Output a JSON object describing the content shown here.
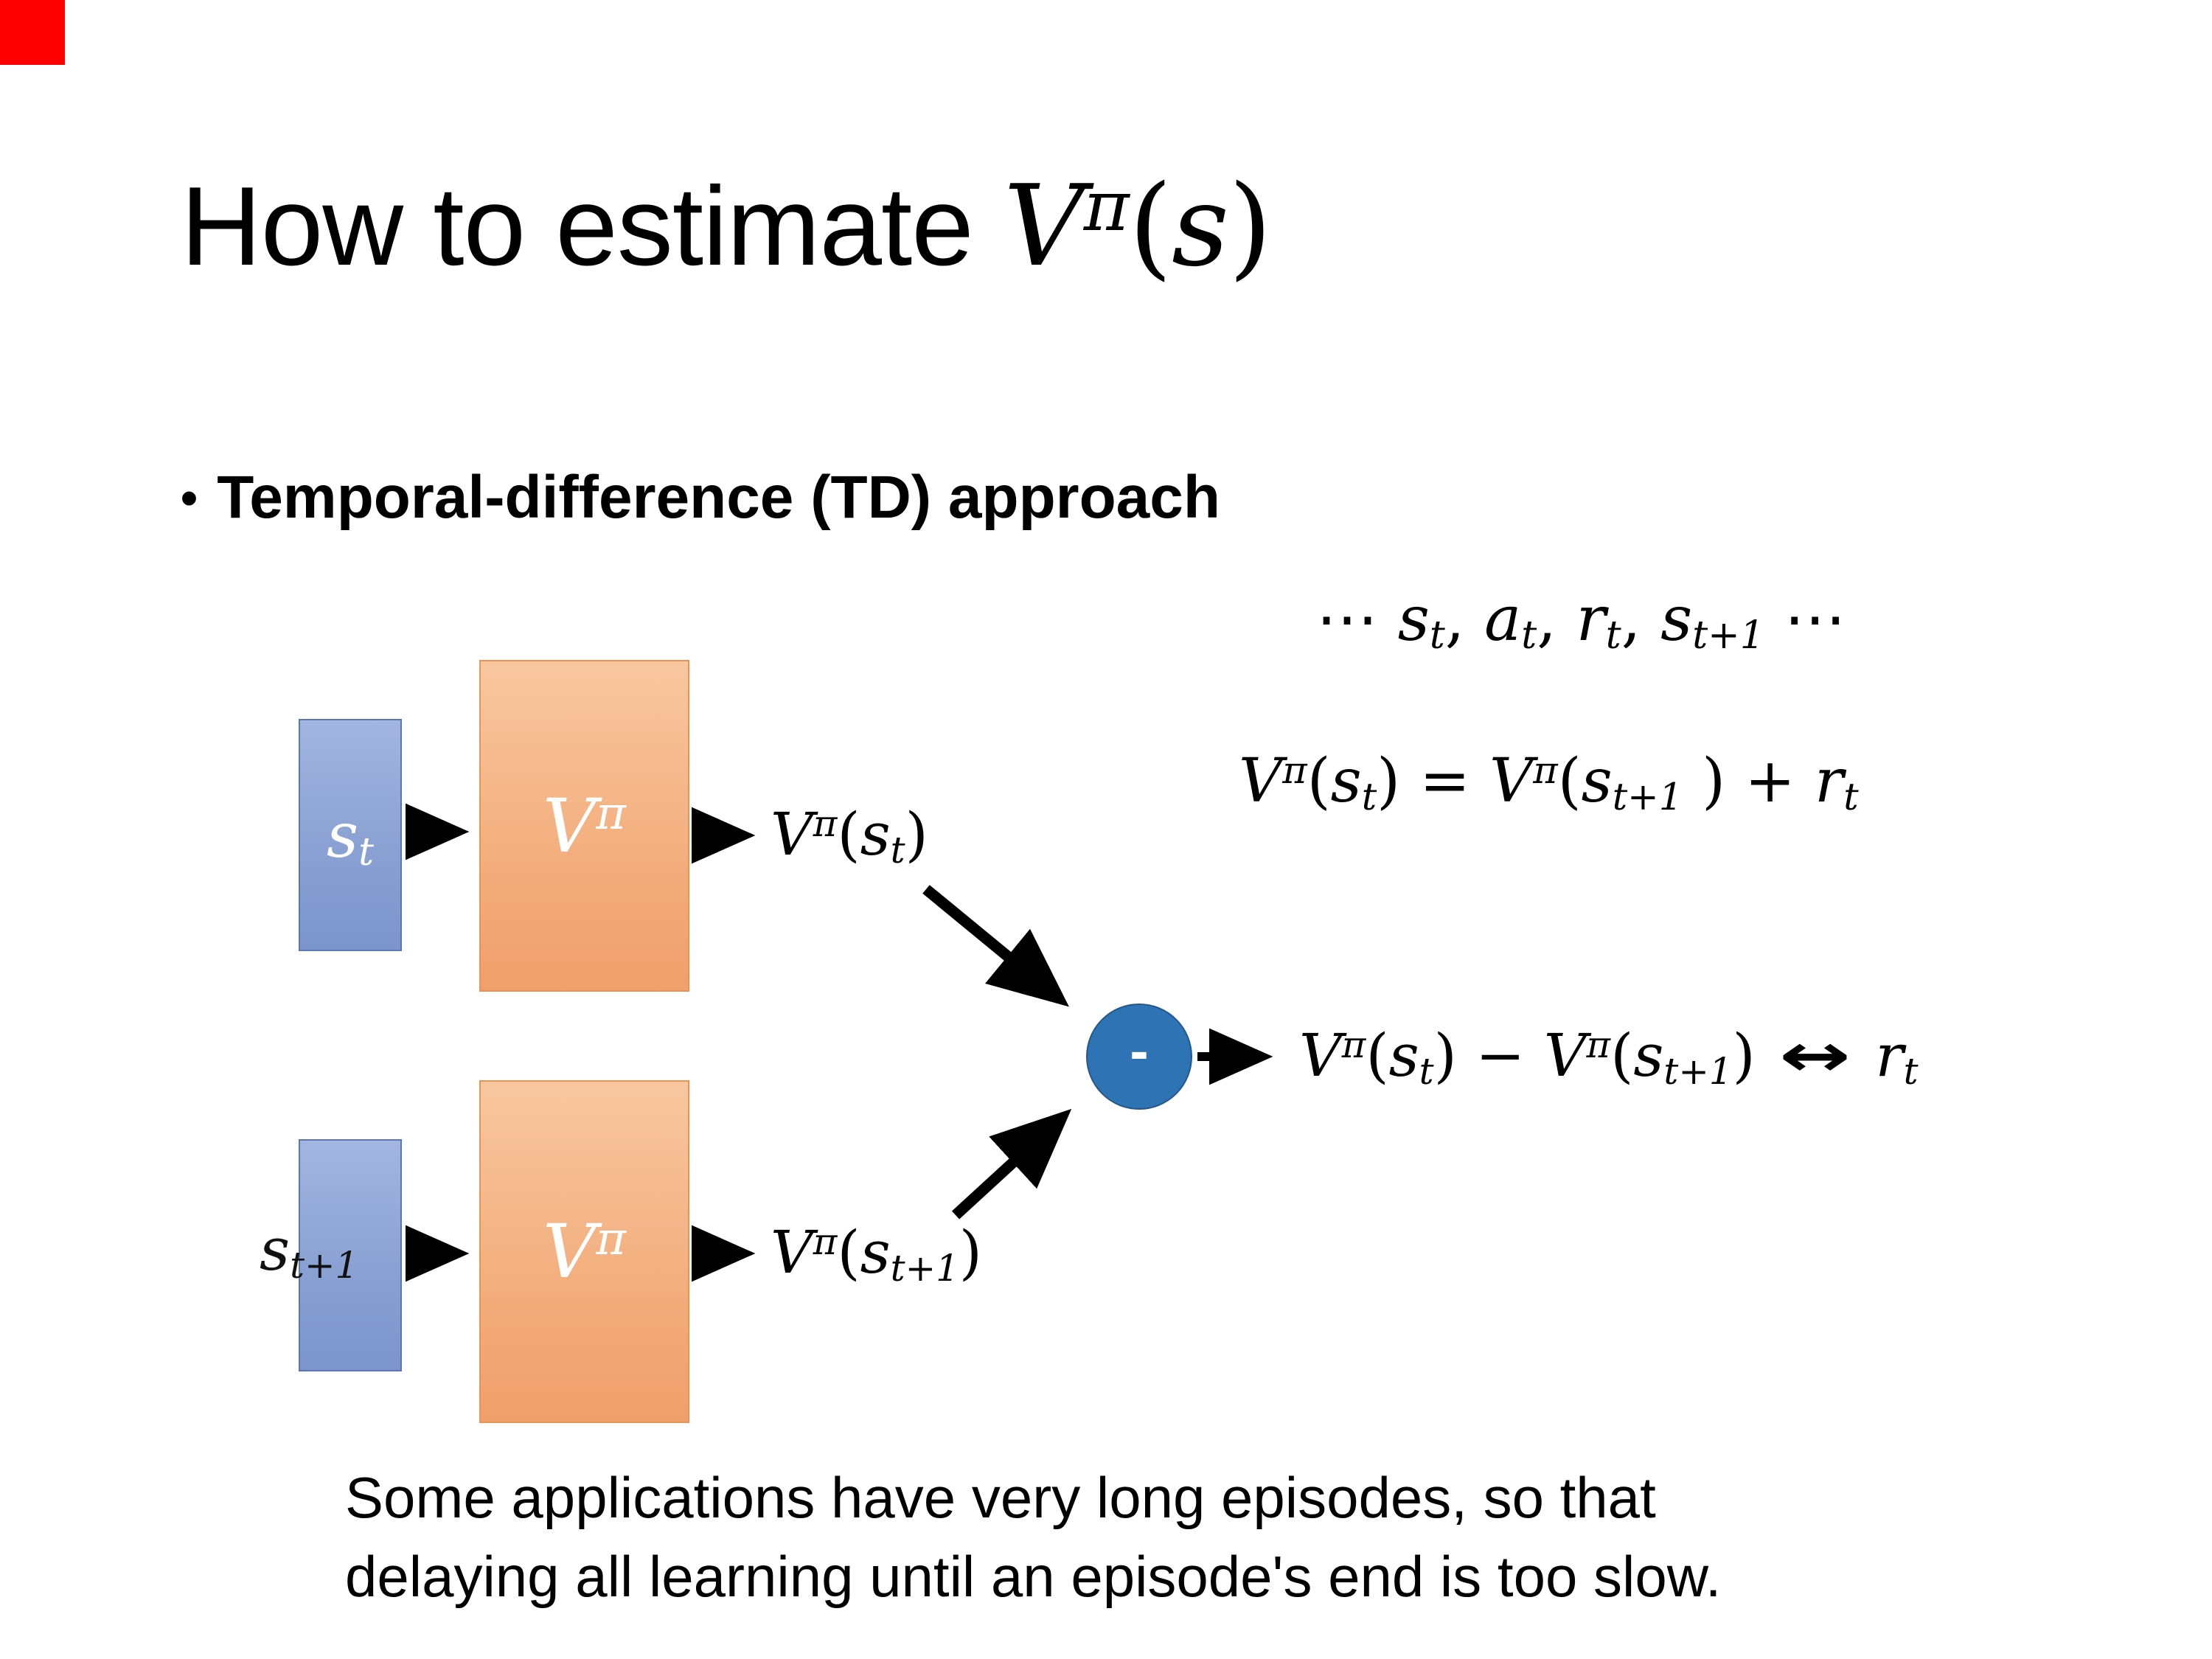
{
  "slide": {
    "marker_color": "#fe0000",
    "background": "#ffffff"
  },
  "title": {
    "tokens": [
      {
        "t": "How to estimate ",
        "k": "plain"
      },
      {
        "t": "V",
        "k": "v"
      },
      {
        "t": "π",
        "k": "sup"
      },
      {
        "t": "(",
        "k": "o"
      },
      {
        "t": "s",
        "k": "v"
      },
      {
        "t": ")",
        "k": "o"
      }
    ]
  },
  "bullet": {
    "marker": "•",
    "text": "Temporal-difference (TD) approach"
  },
  "formulas": {
    "trajectory": {
      "tokens": [
        {
          "t": "⋯ ",
          "k": "o"
        },
        {
          "t": "s",
          "k": "v"
        },
        {
          "t": "t",
          "k": "sub"
        },
        {
          "t": ", ",
          "k": "o"
        },
        {
          "t": "a",
          "k": "v"
        },
        {
          "t": "t",
          "k": "sub"
        },
        {
          "t": ", ",
          "k": "o"
        },
        {
          "t": "r",
          "k": "v"
        },
        {
          "t": "t",
          "k": "sub"
        },
        {
          "t": ", ",
          "k": "o"
        },
        {
          "t": "s",
          "k": "v"
        },
        {
          "t": "t+1",
          "k": "sub"
        },
        {
          "t": " ⋯",
          "k": "o"
        }
      ]
    },
    "td_equation": {
      "tokens": [
        {
          "t": "V",
          "k": "v"
        },
        {
          "t": "π",
          "k": "sup"
        },
        {
          "t": "(",
          "k": "o"
        },
        {
          "t": "s",
          "k": "v"
        },
        {
          "t": "t",
          "k": "sub"
        },
        {
          "t": ") = ",
          "k": "o"
        },
        {
          "t": "V",
          "k": "v"
        },
        {
          "t": "π",
          "k": "sup"
        },
        {
          "t": "(",
          "k": "o"
        },
        {
          "t": "s",
          "k": "v"
        },
        {
          "t": "t+1",
          "k": "sub"
        },
        {
          "t": " ) + ",
          "k": "o"
        },
        {
          "t": "r",
          "k": "v"
        },
        {
          "t": "t",
          "k": "sub"
        }
      ]
    },
    "output_top": {
      "tokens": [
        {
          "t": "V",
          "k": "v"
        },
        {
          "t": "π",
          "k": "sup"
        },
        {
          "t": "(",
          "k": "o"
        },
        {
          "t": "s",
          "k": "v"
        },
        {
          "t": "t",
          "k": "sub"
        },
        {
          "t": ")",
          "k": "o"
        }
      ]
    },
    "output_bottom": {
      "tokens": [
        {
          "t": "V",
          "k": "v"
        },
        {
          "t": "π",
          "k": "sup"
        },
        {
          "t": "(",
          "k": "o"
        },
        {
          "t": "s",
          "k": "v"
        },
        {
          "t": "t+1",
          "k": "sub"
        },
        {
          "t": ")",
          "k": "o"
        }
      ]
    },
    "difference": {
      "tokens": [
        {
          "t": "V",
          "k": "v"
        },
        {
          "t": "π",
          "k": "sup"
        },
        {
          "t": "(",
          "k": "o"
        },
        {
          "t": "s",
          "k": "v"
        },
        {
          "t": "t",
          "k": "sub"
        },
        {
          "t": ") − ",
          "k": "o"
        },
        {
          "t": "V",
          "k": "v"
        },
        {
          "t": "π",
          "k": "sup"
        },
        {
          "t": "(",
          "k": "o"
        },
        {
          "t": "s",
          "k": "v"
        },
        {
          "t": "t+1",
          "k": "sub"
        },
        {
          "t": ") ",
          "k": "o"
        },
        {
          "t": "↔",
          "k": "arr"
        },
        {
          "t": " ",
          "k": "o"
        },
        {
          "t": "r",
          "k": "v"
        },
        {
          "t": "t",
          "k": "sub"
        }
      ]
    }
  },
  "diagram": {
    "state_top": {
      "tokens": [
        {
          "t": "s",
          "k": "v"
        },
        {
          "t": "t",
          "k": "sub"
        }
      ]
    },
    "state_bottom": {
      "tokens": [
        {
          "t": "s",
          "k": "v"
        },
        {
          "t": "t+1",
          "k": "sub"
        }
      ]
    },
    "value_net_top": {
      "tokens": [
        {
          "t": "V",
          "k": "v"
        },
        {
          "t": "π",
          "k": "sup"
        }
      ]
    },
    "value_net_bottom": {
      "tokens": [
        {
          "t": "V",
          "k": "v"
        },
        {
          "t": "π",
          "k": "sup"
        }
      ]
    },
    "minus_label": "-",
    "colors": {
      "state_fill": "#8aa1d3",
      "state_border": "#5b76b0",
      "value_fill": "#f3ae7d",
      "value_border": "#e79455",
      "node_fill": "#2e74b5",
      "arrow": "#000000"
    }
  },
  "footer": {
    "text": "Some applications have very long episodes, so that\ndelaying all learning until an episode's end is too slow."
  }
}
